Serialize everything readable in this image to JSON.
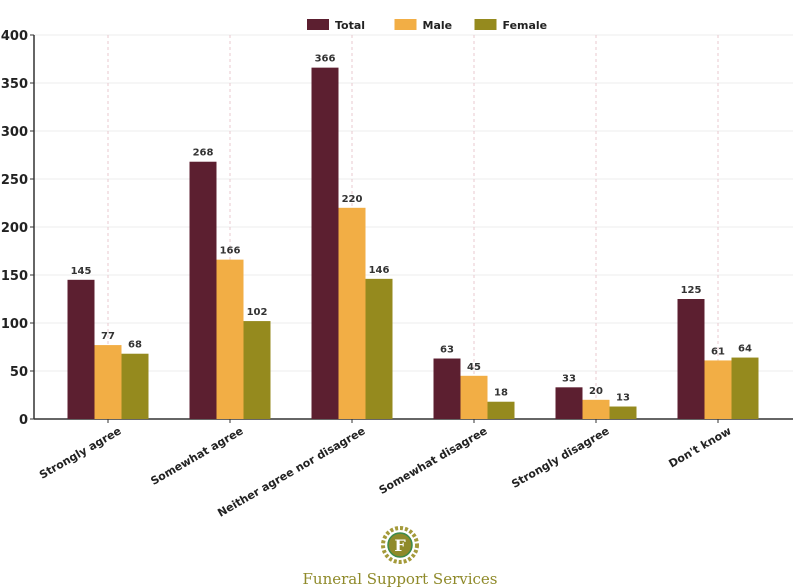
{
  "chart_data": {
    "type": "bar",
    "title": "",
    "xlabel": "",
    "ylabel": "",
    "ylim": [
      0,
      400
    ],
    "yticks": [
      0,
      50,
      100,
      150,
      200,
      250,
      300,
      350,
      400
    ],
    "categories": [
      "Strongly agree",
      "Somewhat agree",
      "Neither agree nor disagree",
      "Somewhat disagree",
      "Strongly disagree",
      "Don't know"
    ],
    "series": [
      {
        "name": "Total",
        "color": "#5c1f30",
        "values": [
          145,
          268,
          366,
          63,
          33,
          125
        ]
      },
      {
        "name": "Male",
        "color": "#f2ae45",
        "values": [
          77,
          166,
          220,
          45,
          20,
          61
        ]
      },
      {
        "name": "Female",
        "color": "#958a1e",
        "values": [
          68,
          102,
          146,
          18,
          13,
          64
        ]
      }
    ],
    "legend": "top-center",
    "grid": true
  },
  "branding": {
    "logo_letter": "F",
    "name": "Funeral Support Services"
  }
}
